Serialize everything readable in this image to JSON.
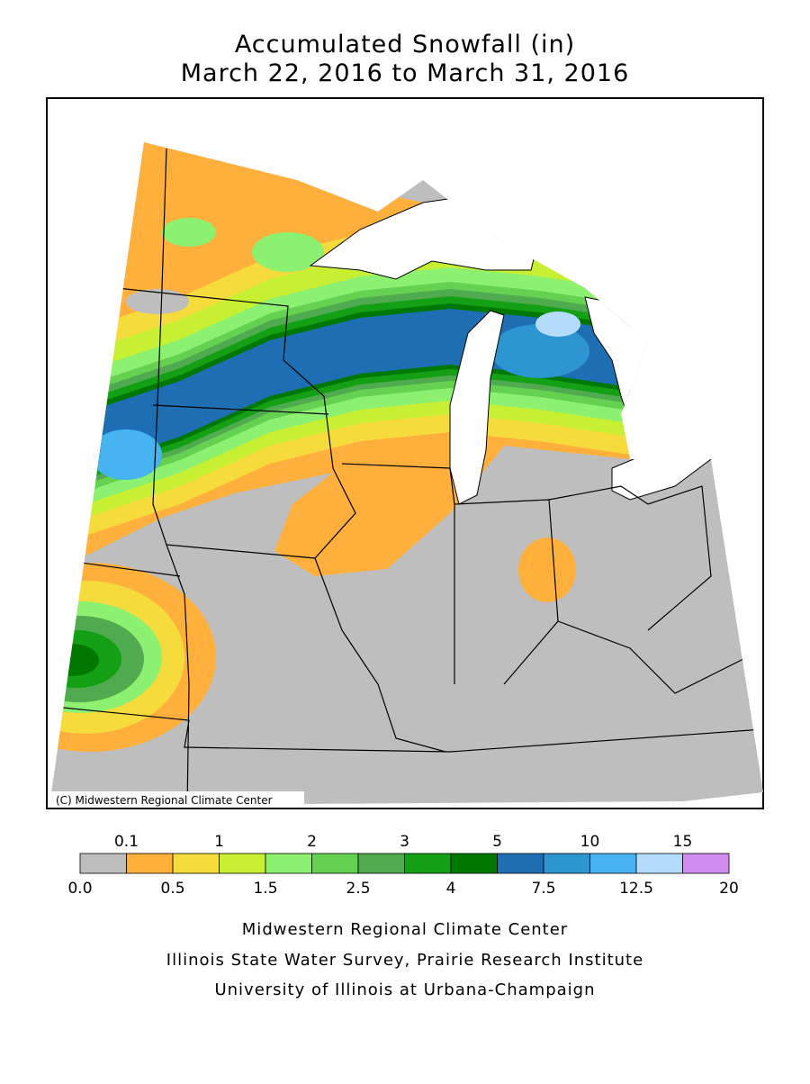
{
  "title": [
    "Accumulated Snowfall (in)",
    "March 22, 2016 to March 31, 2016"
  ],
  "map": {
    "credit": "(C) Midwestern Regional Climate Center"
  },
  "legend": {
    "colors": [
      "#bebebe",
      "#ffb03c",
      "#f5dc3c",
      "#c8f032",
      "#8cf070",
      "#64d250",
      "#50aa50",
      "#14a014",
      "#007800",
      "#1e6eb4",
      "#2d96d2",
      "#46b4f0",
      "#b4dcfa",
      "#d28cf0"
    ],
    "upper_labels": [
      "0.1",
      "1",
      "2",
      "3",
      "5",
      "10",
      "15"
    ],
    "lower_labels": [
      "0.0",
      "0.5",
      "1.5",
      "2.5",
      "4",
      "7.5",
      "12.5",
      "20"
    ]
  },
  "footer": [
    "Midwestern Regional Climate Center",
    "Illinois State Water Survey, Prairie Research Institute",
    "University of Illinois at Urbana-Champaign"
  ]
}
